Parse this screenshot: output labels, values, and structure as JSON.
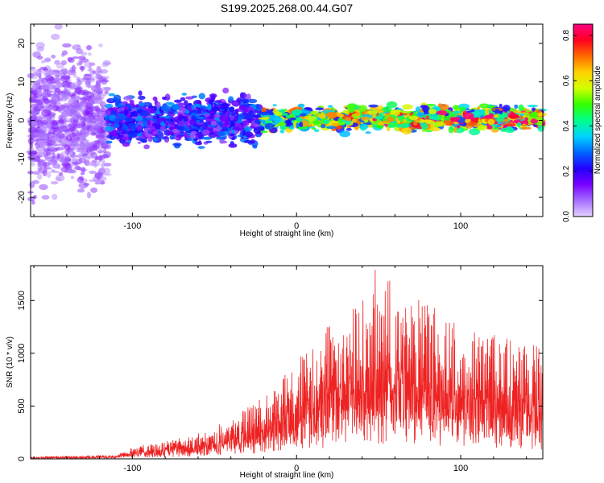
{
  "title": "S199.2025.268.00.44.G07",
  "chart_data": [
    {
      "type": "heatmap",
      "name": "spectrogram",
      "xlabel": "Height of straight line (km)",
      "ylabel": "Frequency (Hz)",
      "xlim": [
        -162,
        150
      ],
      "ylim": [
        -25,
        25
      ],
      "xticks": [
        -100,
        0,
        100
      ],
      "xtick_labels": [
        "-100",
        "0",
        "100"
      ],
      "yticks": [
        -20,
        -10,
        0,
        10,
        20
      ],
      "ytick_labels": [
        "-20",
        "-10",
        "0",
        "10",
        "20"
      ],
      "colorbar": {
        "label": "Normalized spectral amplitude",
        "range": [
          0.0,
          0.85
        ],
        "ticks": [
          0.0,
          0.2,
          0.4,
          0.6,
          0.8
        ],
        "tick_labels": [
          "0.0",
          "0.2",
          "0.4",
          "0.6",
          "0.8"
        ],
        "colormap": [
          "#e6d2ff",
          "#a56eff",
          "#7a00ff",
          "#2200ff",
          "#0066ff",
          "#00d4ff",
          "#00ff8c",
          "#33ff00",
          "#d2ff00",
          "#ffd200",
          "#ff6a00",
          "#ff0020",
          "#ff0080"
        ]
      },
      "description_bands": [
        {
          "x_range": [
            -162,
            -115
          ],
          "freq_spread": 25,
          "amplitude": 0.08
        },
        {
          "x_range": [
            -115,
            -20
          ],
          "freq_spread": 8,
          "amplitude": 0.2
        },
        {
          "x_range": [
            -20,
            150
          ],
          "freq_spread": 3,
          "amplitude": 0.45
        }
      ]
    },
    {
      "type": "line",
      "name": "snr",
      "xlabel": "Height of straight line (km)",
      "ylabel": "SNR (10 * v/v)",
      "xlim": [
        -162,
        150
      ],
      "ylim": [
        0,
        1830
      ],
      "xticks": [
        -100,
        0,
        100
      ],
      "xtick_labels": [
        "-100",
        "0",
        "100"
      ],
      "yticks": [
        0,
        500,
        1000,
        1500
      ],
      "ytick_labels": [
        "0",
        "500",
        "1000",
        "1500"
      ],
      "line_color": "#ee2222",
      "envelope": [
        {
          "x": -162,
          "y": 20
        },
        {
          "x": -110,
          "y": 40
        },
        {
          "x": -100,
          "y": 120
        },
        {
          "x": -80,
          "y": 170
        },
        {
          "x": -60,
          "y": 250
        },
        {
          "x": -40,
          "y": 380
        },
        {
          "x": -25,
          "y": 550
        },
        {
          "x": -10,
          "y": 750
        },
        {
          "x": 10,
          "y": 1100
        },
        {
          "x": 30,
          "y": 1450
        },
        {
          "x": 50,
          "y": 1600
        },
        {
          "x": 70,
          "y": 1550
        },
        {
          "x": 90,
          "y": 1400
        },
        {
          "x": 110,
          "y": 1200
        },
        {
          "x": 130,
          "y": 1150
        },
        {
          "x": 150,
          "y": 1050
        }
      ],
      "peak_value": 1830
    }
  ]
}
